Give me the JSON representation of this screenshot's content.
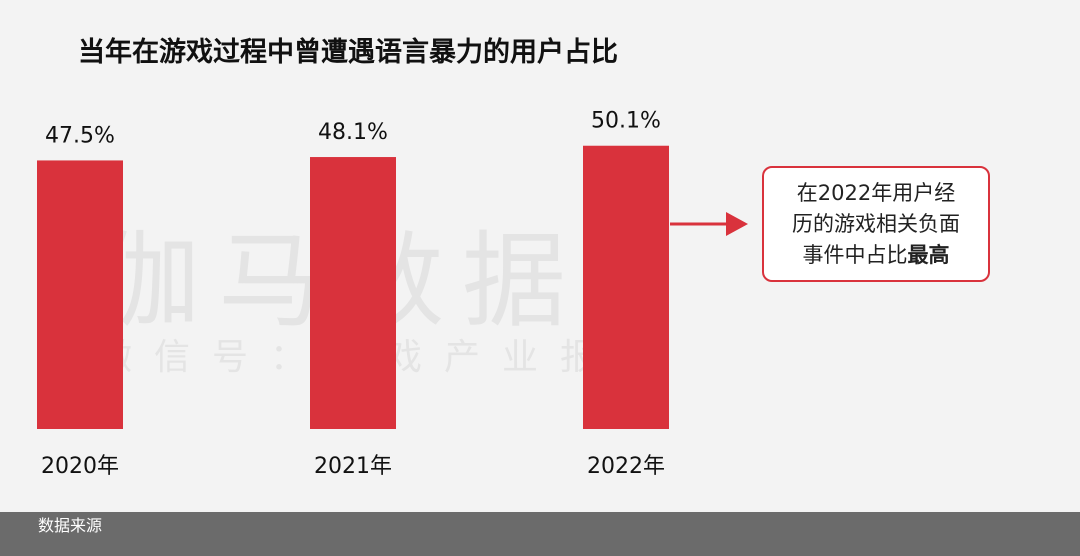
{
  "chart_data": {
    "type": "bar",
    "title": "当年在游戏过程中曾遭遇语言暴力的用户占比",
    "categories": [
      "2020年",
      "2021年",
      "2022年"
    ],
    "values": [
      47.5,
      48.1,
      50.1
    ],
    "value_labels": [
      "47.5%",
      "48.1%",
      "50.1%"
    ],
    "unit": "%",
    "bar_color": "#d9323c",
    "grid": false,
    "legend": "none"
  },
  "callout": {
    "line1": "在2022年用户经",
    "line2": "历的游戏相关负面",
    "line3_prefix": "事件中占比",
    "line3_emphasis": "最高",
    "border_color": "#d9323c"
  },
  "watermark": {
    "main": "伽马数据",
    "sub": "微信号：游戏产业报告"
  },
  "footer": {
    "text": "数据来源"
  }
}
